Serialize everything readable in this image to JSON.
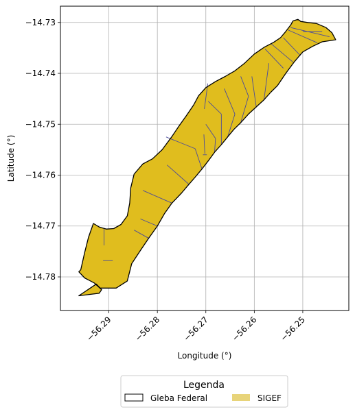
{
  "chart_data": {
    "type": "map",
    "xlabel": "Longitude (°)",
    "ylabel": "Latitude (°)",
    "xlim": [
      -56.3,
      -56.2405
    ],
    "ylim": [
      -14.7866,
      -14.7268
    ],
    "xticks": [
      -56.29,
      -56.28,
      -56.27,
      -56.26,
      -56.25
    ],
    "xtick_labels": [
      "−56.29",
      "−56.28",
      "−56.27",
      "−56.26",
      "−56.25"
    ],
    "yticks": [
      -14.73,
      -14.74,
      -14.75,
      -14.76,
      -14.77,
      -14.78
    ],
    "ytick_labels": [
      "−14.73",
      "−14.74",
      "−14.75",
      "−14.76",
      "−14.77",
      "−14.78"
    ],
    "grid": true,
    "legend": {
      "title": "Legenda",
      "placement": "bottom-center",
      "entries": [
        {
          "label": "Gleba Federal",
          "style": "outline"
        },
        {
          "label": "SIGEF",
          "style": "fill"
        }
      ]
    },
    "layers": [
      {
        "name": "Gleba Federal",
        "fill": "none",
        "edge": "#000000"
      },
      {
        "name": "SIGEF",
        "fill": "#e0bd1e",
        "edge": "#4a4a9a"
      }
    ],
    "gleba_outline": [
      [
        -56.2962,
        -14.7837
      ],
      [
        -56.2926,
        -14.7814
      ],
      [
        -56.2918,
        -14.7822
      ],
      [
        -56.2885,
        -14.7822
      ],
      [
        -56.2862,
        -14.7808
      ],
      [
        -56.2853,
        -14.7774
      ],
      [
        -56.2835,
        -14.7748
      ],
      [
        -56.2818,
        -14.7724
      ],
      [
        -56.28,
        -14.77
      ],
      [
        -56.2785,
        -14.7675
      ],
      [
        -56.277,
        -14.7655
      ],
      [
        -56.275,
        -14.7635
      ],
      [
        -56.2735,
        -14.7618
      ],
      [
        -56.2722,
        -14.7604
      ],
      [
        -56.2708,
        -14.7588
      ],
      [
        -56.2695,
        -14.7572
      ],
      [
        -56.2682,
        -14.7555
      ],
      [
        -56.2668,
        -14.754
      ],
      [
        -56.2655,
        -14.7525
      ],
      [
        -56.2642,
        -14.751
      ],
      [
        -56.2628,
        -14.7497
      ],
      [
        -56.2612,
        -14.748
      ],
      [
        -56.2596,
        -14.7466
      ],
      [
        -56.258,
        -14.7452
      ],
      [
        -56.2566,
        -14.7437
      ],
      [
        -56.2552,
        -14.7424
      ],
      [
        -56.2535,
        -14.74
      ],
      [
        -56.2518,
        -14.7378
      ],
      [
        -56.25,
        -14.7358
      ],
      [
        -56.248,
        -14.7347
      ],
      [
        -56.246,
        -14.7338
      ],
      [
        -56.2432,
        -14.7334
      ],
      [
        -56.244,
        -14.732
      ],
      [
        -56.2452,
        -14.731
      ],
      [
        -56.2472,
        -14.7302
      ],
      [
        -56.249,
        -14.73
      ],
      [
        -56.2504,
        -14.7298
      ],
      [
        -56.251,
        -14.7294
      ],
      [
        -56.252,
        -14.7297
      ],
      [
        -56.2525,
        -14.7305
      ],
      [
        -56.2537,
        -14.732
      ],
      [
        -56.2546,
        -14.733
      ],
      [
        -56.256,
        -14.7339
      ],
      [
        -56.258,
        -14.7349
      ],
      [
        -56.26,
        -14.7362
      ],
      [
        -56.262,
        -14.738
      ],
      [
        -56.264,
        -14.7395
      ],
      [
        -56.266,
        -14.7406
      ],
      [
        -56.268,
        -14.7416
      ],
      [
        -56.27,
        -14.7428
      ],
      [
        -56.2715,
        -14.7444
      ],
      [
        -56.2725,
        -14.7462
      ],
      [
        -56.274,
        -14.7483
      ],
      [
        -56.2755,
        -14.7503
      ],
      [
        -56.277,
        -14.7524
      ],
      [
        -56.279,
        -14.755
      ],
      [
        -56.281,
        -14.7568
      ],
      [
        -56.283,
        -14.7578
      ],
      [
        -56.2848,
        -14.7598
      ],
      [
        -56.2855,
        -14.7625
      ],
      [
        -56.2857,
        -14.7655
      ],
      [
        -56.2862,
        -14.768
      ],
      [
        -56.2875,
        -14.7697
      ],
      [
        -56.289,
        -14.7705
      ],
      [
        -56.2905,
        -14.7706
      ],
      [
        -56.292,
        -14.7702
      ],
      [
        -56.2932,
        -14.7695
      ],
      [
        -56.2942,
        -14.7722
      ],
      [
        -56.295,
        -14.7752
      ],
      [
        -56.2958,
        -14.7786
      ],
      [
        -56.2962,
        -14.779
      ],
      [
        -56.295,
        -14.7802
      ],
      [
        -56.293,
        -14.7812
      ],
      [
        -56.2915,
        -14.7825
      ],
      [
        -56.292,
        -14.7832
      ],
      [
        -56.2962,
        -14.7837
      ]
    ],
    "sigef_divisions": [
      [
        [
          -56.28,
          -14.77
        ],
        [
          -56.2835,
          -14.7686
        ]
      ],
      [
        [
          -56.2818,
          -14.7724
        ],
        [
          -56.2848,
          -14.7708
        ]
      ],
      [
        [
          -56.277,
          -14.7655
        ],
        [
          -56.283,
          -14.763
        ]
      ],
      [
        [
          -56.2735,
          -14.7618
        ],
        [
          -56.278,
          -14.758
        ]
      ],
      [
        [
          -56.2708,
          -14.7588
        ],
        [
          -56.2722,
          -14.7548
        ]
      ],
      [
        [
          -56.2722,
          -14.7548
        ],
        [
          -56.2782,
          -14.7525
        ]
      ],
      [
        [
          -56.2682,
          -14.7555
        ],
        [
          -56.268,
          -14.7528
        ]
      ],
      [
        [
          -56.268,
          -14.7528
        ],
        [
          -56.27,
          -14.75
        ]
      ],
      [
        [
          -56.2668,
          -14.754
        ],
        [
          -56.2668,
          -14.748
        ]
      ],
      [
        [
          -56.2668,
          -14.748
        ],
        [
          -56.2695,
          -14.7455
        ]
      ],
      [
        [
          -56.2655,
          -14.7525
        ],
        [
          -56.264,
          -14.748
        ]
      ],
      [
        [
          -56.264,
          -14.748
        ],
        [
          -56.2662,
          -14.743
        ]
      ],
      [
        [
          -56.2628,
          -14.7497
        ],
        [
          -56.2612,
          -14.7445
        ]
      ],
      [
        [
          -56.2612,
          -14.7445
        ],
        [
          -56.2628,
          -14.7406
        ]
      ],
      [
        [
          -56.2596,
          -14.7466
        ],
        [
          -56.2605,
          -14.7406
        ]
      ],
      [
        [
          -56.258,
          -14.7452
        ],
        [
          -56.257,
          -14.738
        ]
      ],
      [
        [
          -56.254,
          -14.739
        ],
        [
          -56.2578,
          -14.7352
        ]
      ],
      [
        [
          -56.252,
          -14.7378
        ],
        [
          -56.2565,
          -14.7342
        ]
      ],
      [
        [
          -56.2505,
          -14.7365
        ],
        [
          -56.254,
          -14.733
        ]
      ],
      [
        [
          -56.247,
          -14.734
        ],
        [
          -56.253,
          -14.7315
        ]
      ],
      [
        [
          -56.2445,
          -14.7328
        ],
        [
          -56.2525,
          -14.731
        ]
      ],
      [
        [
          -56.246,
          -14.7318
        ],
        [
          -56.25,
          -14.7318
        ]
      ],
      [
        [
          -56.2702,
          -14.7558
        ],
        [
          -56.2704,
          -14.752
        ]
      ],
      [
        [
          -56.2698,
          -14.756
        ],
        [
          -56.2706,
          -14.756
        ]
      ],
      [
        [
          -56.2703,
          -14.747
        ],
        [
          -56.2696,
          -14.742
        ]
      ],
      [
        [
          -56.291,
          -14.7738
        ],
        [
          -56.291,
          -14.7705
        ]
      ],
      [
        [
          -56.2912,
          -14.7768
        ],
        [
          -56.2892,
          -14.7768
        ]
      ]
    ]
  }
}
